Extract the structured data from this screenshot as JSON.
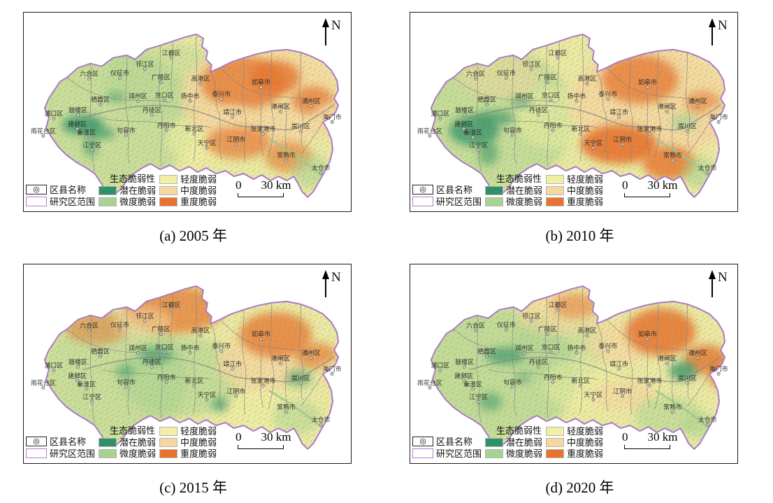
{
  "figure": {
    "panels": [
      {
        "label": "a",
        "year": "2005",
        "caption": "(a) 2005 年"
      },
      {
        "label": "b",
        "year": "2010",
        "caption": "(b) 2010 年"
      },
      {
        "label": "c",
        "year": "2015",
        "caption": "(c) 2015 年"
      },
      {
        "label": "d",
        "year": "2020",
        "caption": "(d) 2020 年"
      }
    ],
    "north_label": "N",
    "legend": {
      "title": "生态脆弱性",
      "symbols": [
        {
          "label": "区县名称",
          "icon": "county-name-symbol",
          "glyph": "◎"
        },
        {
          "label": "研究区范围",
          "icon": "study-area-extent-symbol",
          "color": "#b27fc9"
        }
      ],
      "classes": [
        {
          "label": "潜在脆弱",
          "color": "#2f9168"
        },
        {
          "label": "微度脆弱",
          "color": "#a8d291"
        },
        {
          "label": "轻度脆弱",
          "color": "#f1efa3"
        },
        {
          "label": "中度脆弱",
          "color": "#f7d7a0"
        },
        {
          "label": "重度脆弱",
          "color": "#e8732e"
        }
      ]
    },
    "scalebar": {
      "start": "0",
      "end": "30 km"
    },
    "map": {
      "base_color": "#ece9a4",
      "outline_color": "#a97bc5",
      "boundary_color": "#858585"
    },
    "districts": [
      "江都区",
      "邗江区",
      "六合区",
      "仪征市",
      "广陵区",
      "高港区",
      "如皋市",
      "泰兴市",
      "通州区",
      "港闸区",
      "海门市",
      "靖江市",
      "崇川区",
      "张家港市",
      "润州区",
      "京口区",
      "扬中市",
      "栖霞区",
      "丹徒区",
      "鼓楼区",
      "浦口区",
      "建邺区",
      "雨花台区",
      "秦淮区",
      "句容市",
      "丹阳市",
      "新北区",
      "江宁区",
      "天宁区",
      "江阴市",
      "常熟市",
      "太仓市"
    ]
  }
}
